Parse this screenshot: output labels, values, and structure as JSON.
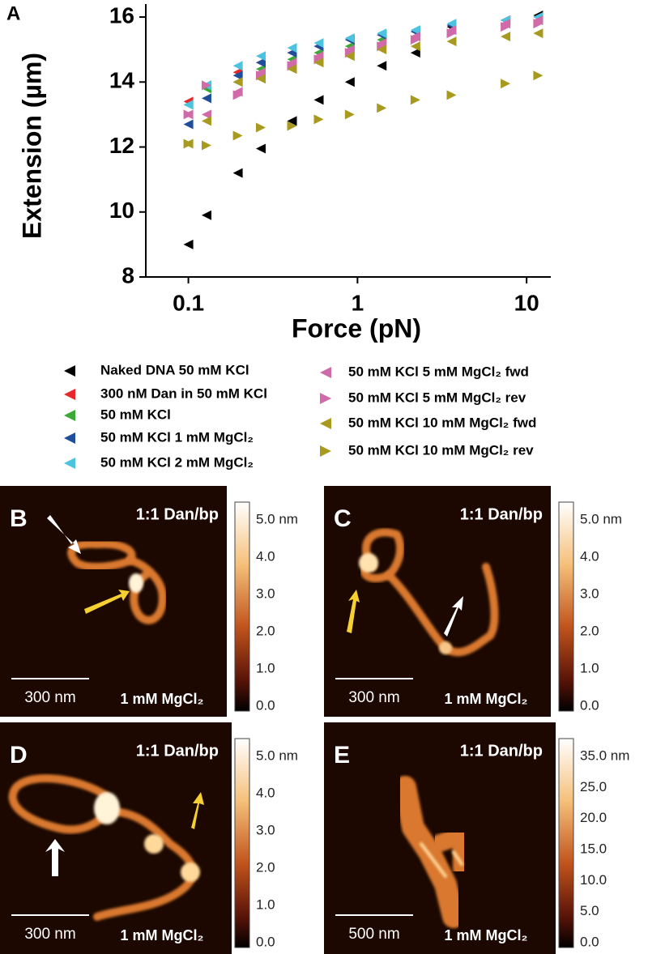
{
  "chart_data": {
    "type": "scatter",
    "label": "A",
    "x_label": "Force (pN)",
    "y_label": "Extension (µm)",
    "x": [
      0.1,
      0.128,
      0.196,
      0.268,
      0.41,
      0.59,
      0.9,
      1.39,
      2.2,
      3.6,
      7.5,
      11.7
    ],
    "xlim": [
      0.056,
      13.9
    ],
    "xticks": [
      0.1,
      1,
      10
    ],
    "log_x": true,
    "ylim": [
      8,
      16.4
    ],
    "yticks": [
      8,
      10,
      12,
      14,
      16
    ],
    "series": [
      {
        "name": "Naked DNA 50 mM KCl",
        "color": "#000000",
        "marker": "left",
        "values": [
          9.0,
          9.9,
          11.2,
          11.95,
          12.8,
          13.45,
          14.0,
          14.5,
          14.9,
          15.7,
          15.9,
          16.05
        ]
      },
      {
        "name": "300 nM Dan in 50 mM KCl",
        "color": "#e8272a",
        "marker": "left",
        "values": [
          13.4,
          13.9,
          14.3,
          14.6,
          14.9,
          15.1,
          15.3,
          15.45,
          15.55,
          15.75,
          15.9,
          16.0
        ]
      },
      {
        "name": "50 mM KCl",
        "color": "#3aa935",
        "marker": "left",
        "values": [
          13.3,
          13.8,
          14.0,
          14.4,
          14.7,
          14.9,
          15.1,
          15.3,
          15.4,
          15.6,
          15.8,
          15.9
        ]
      },
      {
        "name": "50 mM KCl 1 mM MgCl₂",
        "color": "#1f4e9c",
        "marker": "left",
        "values": [
          12.7,
          13.5,
          14.2,
          14.6,
          14.9,
          15.1,
          15.3,
          15.45,
          15.55,
          15.75,
          15.9,
          16.0
        ]
      },
      {
        "name": "50 mM KCl 2 mM MgCl₂",
        "color": "#4cc4e0",
        "marker": "left",
        "values": [
          13.3,
          13.9,
          14.5,
          14.8,
          15.05,
          15.2,
          15.35,
          15.5,
          15.6,
          15.8,
          15.9,
          16.0
        ]
      },
      {
        "name": "50 mM KCl 5 mM MgCl₂ fwd",
        "color": "#d06aa8",
        "marker": "left",
        "values": [
          13.0,
          13.0,
          13.7,
          14.3,
          14.6,
          14.8,
          15.0,
          15.2,
          15.4,
          15.6,
          15.8,
          15.9
        ]
      },
      {
        "name": "50 mM KCl 5 mM MgCl₂ rev",
        "color": "#d06aa8",
        "marker": "right",
        "values": [
          13.0,
          13.9,
          13.6,
          14.2,
          14.5,
          14.7,
          14.9,
          15.1,
          15.3,
          15.5,
          15.7,
          15.8
        ]
      },
      {
        "name": "50 mM KCl 10 mM MgCl₂ fwd",
        "color": "#a89a1e",
        "marker": "left",
        "values": [
          12.1,
          12.8,
          14.0,
          14.1,
          14.4,
          14.6,
          14.8,
          15.0,
          15.1,
          15.25,
          15.4,
          15.5
        ]
      },
      {
        "name": "50 mM KCl 10 mM MgCl₂ rev",
        "color": "#a89a1e",
        "marker": "right",
        "values": [
          12.1,
          12.05,
          12.35,
          12.6,
          12.65,
          12.85,
          13.0,
          13.2,
          13.45,
          13.6,
          13.95,
          14.2
        ]
      }
    ]
  },
  "panels": [
    {
      "label": "B",
      "title": "1:1 Dan/bp",
      "scale_bar": "300 nm",
      "condition": "1 mM MgCl₂",
      "colorbar": [
        "5.0 nm",
        "4.0",
        "3.0",
        "2.0",
        "1.0",
        "0.0"
      ]
    },
    {
      "label": "C",
      "title": "1:1 Dan/bp",
      "scale_bar": "300 nm",
      "condition": "1 mM MgCl₂",
      "colorbar": [
        "5.0 nm",
        "4.0",
        "3.0",
        "2.0",
        "1.0",
        "0.0"
      ]
    },
    {
      "label": "D",
      "title": "1:1 Dan/bp",
      "scale_bar": "300 nm",
      "condition": "1 mM MgCl₂",
      "colorbar": [
        "5.0 nm",
        "4.0",
        "3.0",
        "2.0",
        "1.0",
        "0.0"
      ]
    },
    {
      "label": "E",
      "title": "1:1 Dan/bp",
      "scale_bar": "500 nm",
      "condition": "1 mM MgCl₂",
      "colorbar": [
        "35.0 nm",
        "25.0",
        "20.0",
        "15.0",
        "10.0",
        "5.0",
        "0.0"
      ]
    }
  ]
}
